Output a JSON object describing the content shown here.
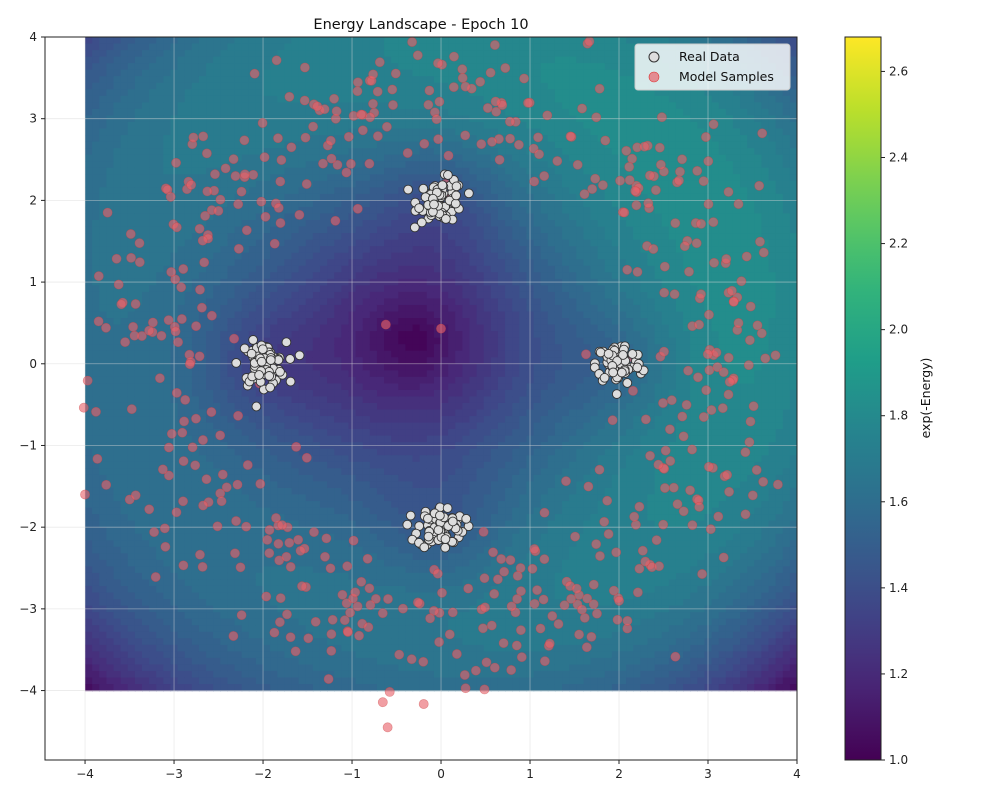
{
  "chart_data": {
    "type": "scatter",
    "title": "Energy Landscape - Epoch 10",
    "xlim": [
      -4.45,
      4.0
    ],
    "ylim": [
      -4.85,
      4.0
    ],
    "xticks": [
      -4,
      -3,
      -2,
      -1,
      0,
      1,
      2,
      3,
      4
    ],
    "yticks": [
      -4,
      -3,
      -2,
      -1,
      0,
      1,
      2,
      3,
      4
    ],
    "grid": true,
    "legend_position": "top-right",
    "contour_extent": {
      "x": [
        -4,
        4
      ],
      "y": [
        -4,
        4
      ]
    },
    "series": [
      {
        "name": "Real Data",
        "marker_color": "#dddddd",
        "edge_color": "#333333",
        "clusters": [
          {
            "center": [
              0.0,
              2.0
            ],
            "spread": 0.13,
            "count": 80
          },
          {
            "center": [
              -2.0,
              0.0
            ],
            "spread": 0.13,
            "count": 80
          },
          {
            "center": [
              2.0,
              0.0
            ],
            "spread": 0.13,
            "count": 80
          },
          {
            "center": [
              0.0,
              -2.0
            ],
            "spread": 0.13,
            "count": 80
          }
        ]
      },
      {
        "name": "Model Samples",
        "marker_color": "#e8636b",
        "ring": {
          "radius": 3.2,
          "spread": 0.45,
          "count": 560
        },
        "extra_points": [
          [
            -4.0,
            -1.6
          ],
          [
            -0.6,
            -4.45
          ],
          [
            0.0,
            0.43
          ],
          [
            -0.62,
            0.48
          ],
          [
            0.05,
            2.2
          ],
          [
            0.1,
            2.05
          ],
          [
            2.15,
            0.08
          ]
        ]
      }
    ],
    "colorbar": {
      "label": "exp(-Energy)",
      "range": [
        1.0,
        2.68
      ],
      "ticks": [
        "1.0",
        "1.2",
        "1.4",
        "1.6",
        "1.8",
        "2.0",
        "2.2",
        "2.4",
        "2.6"
      ],
      "colormap": "viridis"
    },
    "energy_surface": {
      "minimum": [
        -0.3,
        0.3
      ],
      "min_value": 1.0,
      "max_value": 2.68
    }
  },
  "legend": {
    "real_label": "Real Data",
    "model_label": "Model Samples"
  }
}
